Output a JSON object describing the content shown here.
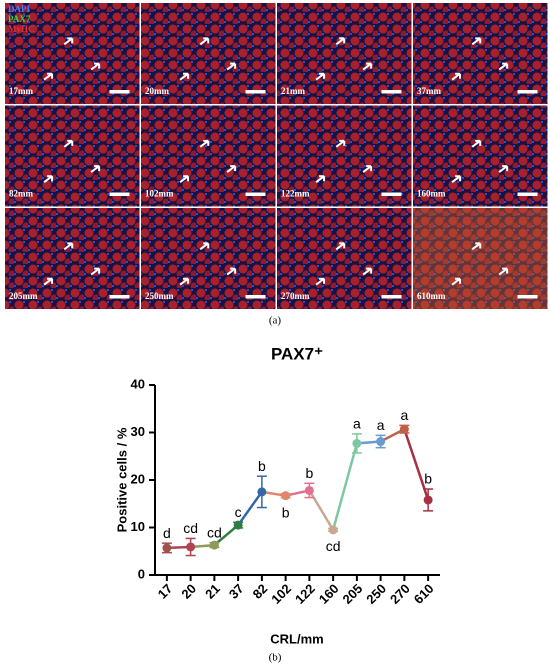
{
  "panels": {
    "legend": [
      {
        "text": "DAPI",
        "color": "#4a7bff"
      },
      {
        "text": "PAX7",
        "color": "#39d24a"
      },
      {
        "text": "MyHC",
        "color": "#e03030"
      }
    ],
    "labels": [
      "17mm",
      "20mm",
      "21mm",
      "37mm",
      "82mm",
      "102mm",
      "122mm",
      "160mm",
      "205mm",
      "250mm",
      "270mm",
      "610mm"
    ],
    "caption": "(a)"
  },
  "chart_data": {
    "type": "line",
    "title": "PAX7⁺",
    "x_label": "CRL/mm",
    "y_label": "Positive cells / %",
    "categories": [
      "17",
      "20",
      "21",
      "37",
      "82",
      "102",
      "122",
      "160",
      "205",
      "250",
      "270",
      "610"
    ],
    "values": [
      5.7,
      5.9,
      6.3,
      10.5,
      17.5,
      16.7,
      17.8,
      9.5,
      27.7,
      28.1,
      30.7,
      15.8
    ],
    "errors": [
      1.0,
      1.8,
      0.5,
      0.6,
      3.3,
      0.4,
      1.5,
      0.3,
      2.0,
      1.3,
      0.8,
      2.3
    ],
    "significance": [
      "d",
      "cd",
      "cd",
      "c",
      "b",
      "b",
      "b",
      "cd",
      "a",
      "a",
      "a",
      "b"
    ],
    "colors": [
      "#a0524a",
      "#b0434f",
      "#8f9a5a",
      "#2f7f45",
      "#3566a8",
      "#e0866a",
      "#e07090",
      "#c8a890",
      "#7cc8a0",
      "#6a9ad0",
      "#c0604a",
      "#a83040"
    ],
    "ylim": [
      0,
      40
    ],
    "yticks": [
      0,
      10,
      20,
      30,
      40
    ],
    "caption": "(b)"
  }
}
